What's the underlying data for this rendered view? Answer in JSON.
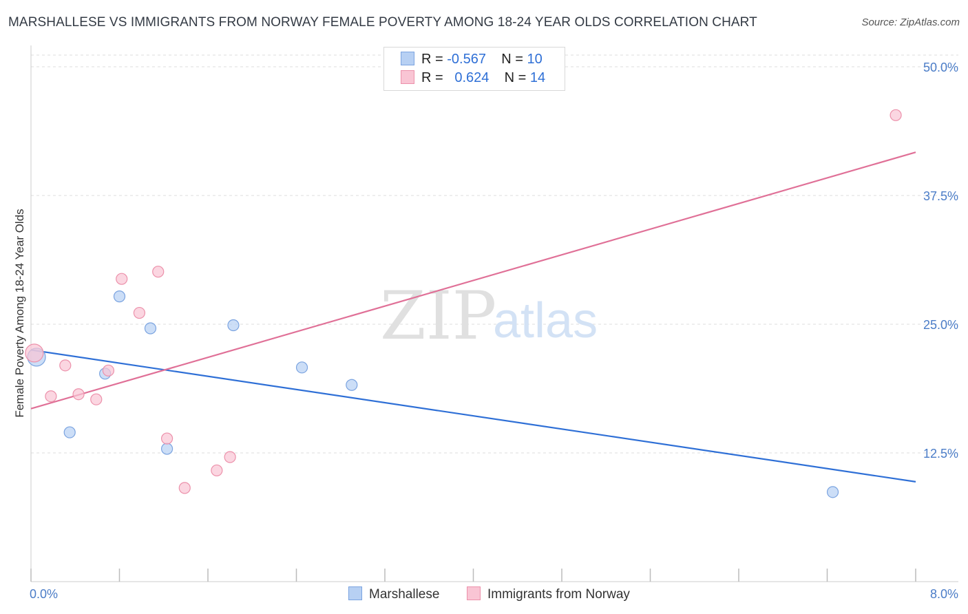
{
  "header": {
    "title": "MARSHALLESE VS IMMIGRANTS FROM NORWAY FEMALE POVERTY AMONG 18-24 YEAR OLDS CORRELATION CHART",
    "source": "Source: ZipAtlas.com"
  },
  "watermark": {
    "zip": "ZIP",
    "atlas": "atlas"
  },
  "legend": {
    "rows": [
      {
        "r_label": "R =",
        "r_value": "-0.567",
        "n_label": "N =",
        "n_value": "10",
        "fill": "#b7d0f3",
        "stroke": "#7aa3e0"
      },
      {
        "r_label": "R =",
        "r_value": "0.624",
        "n_label": "N =",
        "n_value": "14",
        "fill": "#f9c5d4",
        "stroke": "#ec90aa"
      }
    ]
  },
  "bottom_legend": {
    "items": [
      {
        "label": "Marshallese",
        "fill": "#b7d0f3",
        "stroke": "#7aa3e0"
      },
      {
        "label": "Immigrants from Norway",
        "fill": "#f9c5d4",
        "stroke": "#ec90aa"
      }
    ]
  },
  "chart_data": {
    "type": "scatter",
    "title": "MARSHALLESE VS IMMIGRANTS FROM NORWAY FEMALE POVERTY AMONG 18-24 YEAR OLDS CORRELATION CHART",
    "xlabel": "",
    "ylabel": "Female Poverty Among 18-24 Year Olds",
    "xlim": [
      0,
      8
    ],
    "ylim": [
      0,
      50
    ],
    "x_tick_labels": [
      "0.0%",
      "8.0%"
    ],
    "y_ticks": [
      12.5,
      25.0,
      37.5,
      50.0
    ],
    "y_tick_labels": [
      "12.5%",
      "25.0%",
      "37.5%",
      "50.0%"
    ],
    "grid": true,
    "series": [
      {
        "name": "Marshallese",
        "color": "#2e6fd6",
        "point_fill": "#b7d0f3",
        "point_stroke": "#7aa3e0",
        "x": [
          0.05,
          0.35,
          0.67,
          0.8,
          1.08,
          1.23,
          1.83,
          2.45,
          2.9,
          7.25
        ],
        "y": [
          21.8,
          14.5,
          20.2,
          27.7,
          24.6,
          12.9,
          24.9,
          20.8,
          19.1,
          8.7
        ],
        "trend": {
          "x": [
            0.0,
            8.0
          ],
          "y": [
            22.5,
            9.7
          ]
        }
      },
      {
        "name": "Immigrants from Norway",
        "color": "#e07097",
        "point_fill": "#f9c5d4",
        "point_stroke": "#ec90aa",
        "x": [
          0.03,
          0.18,
          0.31,
          0.43,
          0.59,
          0.7,
          0.82,
          0.98,
          1.15,
          1.23,
          1.39,
          1.68,
          1.8,
          7.82
        ],
        "y": [
          22.2,
          18.0,
          21.0,
          18.2,
          17.7,
          20.5,
          29.4,
          26.1,
          30.1,
          13.9,
          9.1,
          10.8,
          12.1,
          45.3
        ],
        "trend": {
          "x": [
            0.0,
            8.0
          ],
          "y": [
            16.8,
            41.7
          ]
        }
      }
    ]
  }
}
